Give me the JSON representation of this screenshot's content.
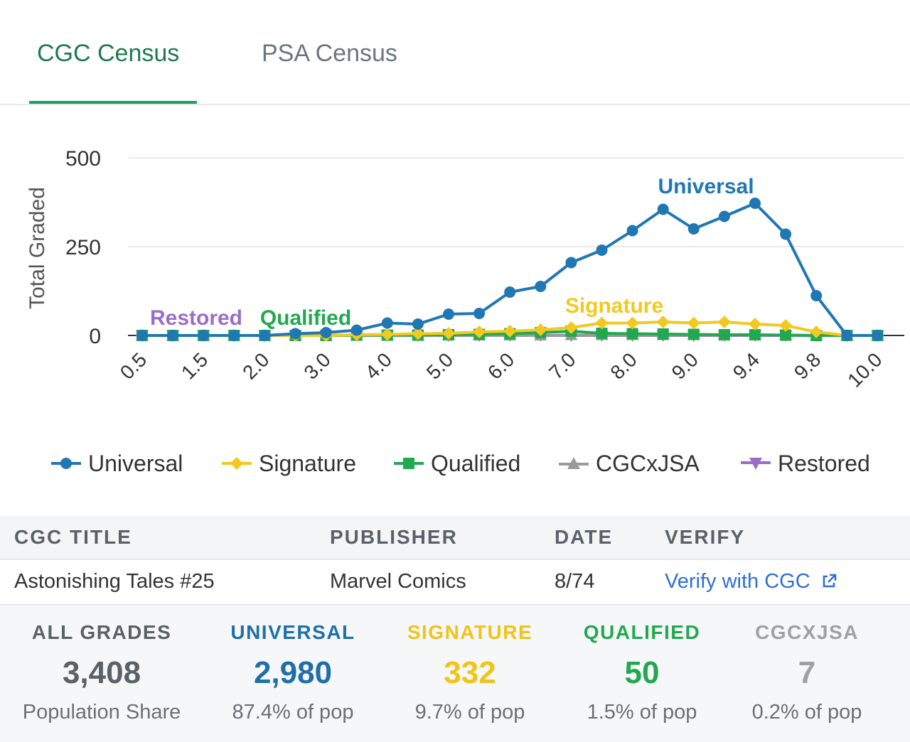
{
  "tabs": {
    "active": "CGC Census",
    "inactive": "PSA Census"
  },
  "colors": {
    "universal": "#1f77b4",
    "signature": "#f2c91f",
    "qualified": "#22a84f",
    "cgcxjsa": "#9a9a9a",
    "restored": "#9a6dc9",
    "tab_active": "#1e7a4e",
    "link": "#2f6fd6"
  },
  "chart_data": {
    "type": "line",
    "ylabel": "Total Graded",
    "xlabel": "",
    "ylim": [
      0,
      500
    ],
    "yticks": [
      0,
      250,
      500
    ],
    "grid": true,
    "legend_position": "bottom",
    "x": [
      0.5,
      1.0,
      1.5,
      1.8,
      2.0,
      2.5,
      3.0,
      3.5,
      4.0,
      4.5,
      5.0,
      5.5,
      6.0,
      6.5,
      7.0,
      7.5,
      8.0,
      8.5,
      9.0,
      9.2,
      9.4,
      9.6,
      9.8,
      9.9,
      10.0
    ],
    "xtick_labels": [
      "0.5",
      "1.5",
      "2.0",
      "3.0",
      "4.0",
      "5.0",
      "6.0",
      "7.0",
      "8.0",
      "9.0",
      "9.4",
      "9.8",
      "10.0"
    ],
    "xtick_indices": [
      0,
      2,
      4,
      6,
      8,
      10,
      12,
      14,
      16,
      18,
      20,
      22,
      24
    ],
    "series": [
      {
        "name": "Universal",
        "key": "universal",
        "marker": "circle",
        "values": [
          0,
          0,
          0,
          0,
          0,
          5,
          8,
          15,
          35,
          32,
          60,
          62,
          122,
          138,
          205,
          240,
          295,
          355,
          300,
          335,
          372,
          285,
          112,
          0,
          0
        ]
      },
      {
        "name": "Signature",
        "key": "signature",
        "marker": "diamond",
        "values": [
          0,
          0,
          0,
          0,
          0,
          0,
          0,
          2,
          3,
          5,
          6,
          10,
          12,
          16,
          22,
          35,
          35,
          38,
          35,
          38,
          32,
          28,
          10,
          0,
          0
        ]
      },
      {
        "name": "Qualified",
        "key": "qualified",
        "marker": "square",
        "values": [
          0,
          0,
          0,
          0,
          0,
          0,
          0,
          1,
          1,
          1,
          2,
          3,
          5,
          8,
          12,
          6,
          5,
          4,
          3,
          2,
          2,
          1,
          0,
          0,
          0
        ]
      },
      {
        "name": "CGCxJSA",
        "key": "cgcxjsa",
        "marker": "triangle",
        "values": [
          0,
          0,
          0,
          0,
          0,
          0,
          0,
          0,
          0,
          0,
          0,
          0,
          0,
          0,
          1,
          1,
          1,
          1,
          1,
          1,
          1,
          1,
          0,
          0,
          0
        ]
      },
      {
        "name": "Restored",
        "key": "restored",
        "marker": "triangle-down",
        "values": [
          0,
          0,
          0,
          0,
          0,
          0,
          0,
          0,
          0,
          0,
          0,
          0,
          0,
          0,
          0,
          0,
          0,
          0,
          0,
          0,
          0,
          0,
          0,
          0,
          0
        ]
      }
    ],
    "annotations": [
      {
        "text": "Universal",
        "key": "universal"
      },
      {
        "text": "Signature",
        "key": "signature"
      },
      {
        "text": "Restored",
        "key": "restored"
      },
      {
        "text": "Qualified",
        "key": "qualified"
      }
    ]
  },
  "table": {
    "headers": [
      "CGC TITLE",
      "PUBLISHER",
      "DATE",
      "VERIFY"
    ],
    "row": {
      "title": "Astonishing Tales #25",
      "publisher": "Marvel Comics",
      "date": "8/74",
      "verify": "Verify with CGC",
      "verify_icon": "external-link-icon"
    }
  },
  "stats": [
    {
      "key": "all",
      "label": "ALL GRADES",
      "value": "3,408",
      "sub": "Population Share",
      "color": "#5b6168"
    },
    {
      "key": "universal",
      "label": "UNIVERSAL",
      "value": "2,980",
      "sub": "87.4% of pop",
      "color": "#1f6fa8"
    },
    {
      "key": "signature",
      "label": "SIGNATURE",
      "value": "332",
      "sub": "9.7% of pop",
      "color": "#f0c419"
    },
    {
      "key": "qualified",
      "label": "QUALIFIED",
      "value": "50",
      "sub": "1.5% of pop",
      "color": "#22a84f"
    },
    {
      "key": "cgcxjsa",
      "label": "CGCXJSA",
      "value": "7",
      "sub": "0.2% of pop",
      "color": "#a0a0a0"
    }
  ]
}
